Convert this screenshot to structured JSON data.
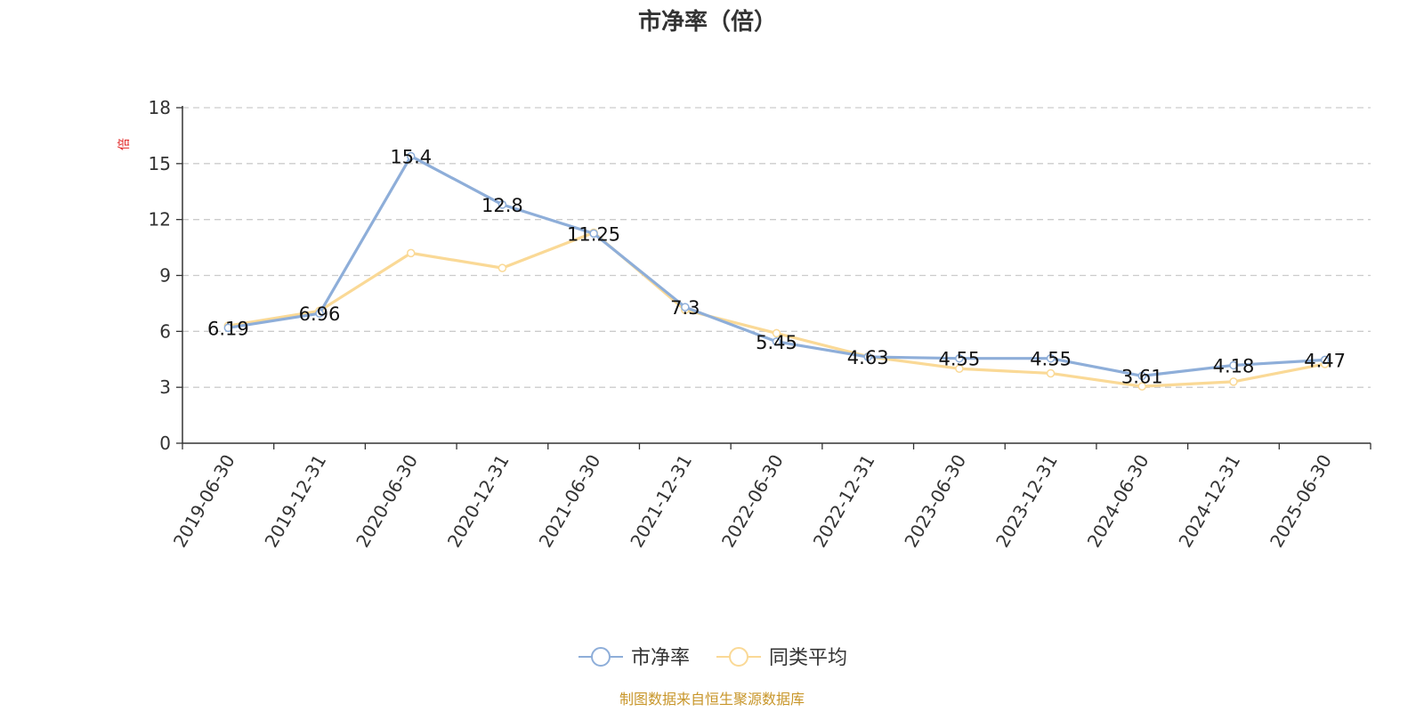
{
  "chart_data": {
    "type": "line",
    "title": "市净率（倍）",
    "ylabel": "倍",
    "categories": [
      "2019-06-30",
      "2019-12-31",
      "2020-06-30",
      "2020-12-31",
      "2021-06-30",
      "2021-12-31",
      "2022-06-30",
      "2022-12-31",
      "2023-06-30",
      "2023-12-31",
      "2024-06-30",
      "2024-12-31",
      "2025-06-30"
    ],
    "ylim": [
      0,
      18
    ],
    "yticks": [
      0,
      3,
      6,
      9,
      12,
      15,
      18
    ],
    "grid": true,
    "legend_position": "bottom",
    "series": [
      {
        "name": "市净率",
        "color": "#8eaed9",
        "values": [
          6.19,
          6.96,
          15.4,
          12.8,
          11.25,
          7.3,
          5.45,
          4.63,
          4.55,
          4.55,
          3.61,
          4.18,
          4.47
        ],
        "labels": [
          "6.19",
          "6.96",
          "15.4",
          "12.8",
          "11.25",
          "7.3",
          "5.45",
          "4.63",
          "4.55",
          "4.55",
          "3.61",
          "4.18",
          "4.47"
        ]
      },
      {
        "name": "同类平均",
        "color": "#fad996",
        "values": [
          6.3,
          7.1,
          10.2,
          9.4,
          11.3,
          7.15,
          5.9,
          4.65,
          4.0,
          3.75,
          3.05,
          3.3,
          4.25
        ]
      }
    ]
  },
  "source_text": "制图数据来自恒生聚源数据库",
  "colors": {
    "axis": "#333333",
    "grid": "#cccccc",
    "unit_label": "#e02020",
    "source_text": "#c8962a"
  }
}
